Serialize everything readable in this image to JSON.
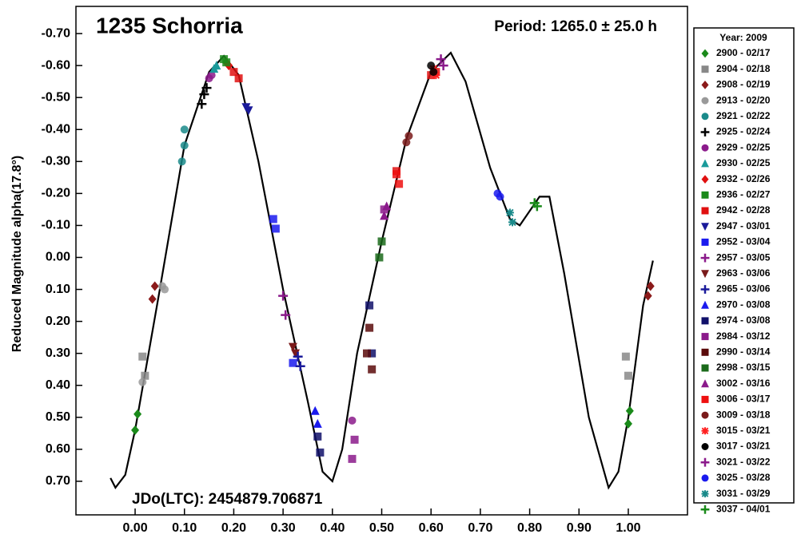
{
  "chart_data": {
    "type": "scatter",
    "title": "1235 Schorria",
    "subtitle": "Period: 1265.0 ± 25.0 h",
    "annotation": "JDo(LTC): 2454879.706871",
    "y_label": "Reduced Magnitude alpha(17.8°)",
    "legend_title": "Year: 2009",
    "legend_position": "right",
    "xlim": [
      -0.12,
      1.12
    ],
    "ylim": [
      0.805,
      -0.785
    ],
    "xticks": [
      {
        "value": 0,
        "label": "0.00"
      },
      {
        "value": 0.1,
        "label": "0.10"
      },
      {
        "value": 0.2,
        "label": "0.20"
      },
      {
        "value": 0.3,
        "label": "0.30"
      },
      {
        "value": 0.4,
        "label": "0.40"
      },
      {
        "value": 0.5,
        "label": "0.50"
      },
      {
        "value": 0.6,
        "label": "0.60"
      },
      {
        "value": 0.7,
        "label": "0.70"
      },
      {
        "value": 0.8,
        "label": "0.80"
      },
      {
        "value": 0.9,
        "label": "0.90"
      },
      {
        "value": 1,
        "label": "1.00"
      }
    ],
    "yticks": [
      {
        "value": -0.7,
        "label": "-0.70"
      },
      {
        "value": -0.6,
        "label": "-0.60"
      },
      {
        "value": -0.5,
        "label": "-0.50"
      },
      {
        "value": -0.4,
        "label": "-0.40"
      },
      {
        "value": -0.3,
        "label": "-0.30"
      },
      {
        "value": -0.2,
        "label": "-0.20"
      },
      {
        "value": -0.1,
        "label": "-0.10"
      },
      {
        "value": 0,
        "label": "0.00"
      },
      {
        "value": 0.1,
        "label": "0.10"
      },
      {
        "value": 0.2,
        "label": "0.20"
      },
      {
        "value": 0.3,
        "label": "0.30"
      },
      {
        "value": 0.4,
        "label": "0.40"
      },
      {
        "value": 0.5,
        "label": "0.50"
      },
      {
        "value": 0.6,
        "label": "0.60"
      },
      {
        "value": 0.7,
        "label": "0.70"
      }
    ],
    "fit": {
      "color": "#000000",
      "x": [
        -0.05,
        -0.04,
        -0.02,
        0.0,
        0.05,
        0.1,
        0.15,
        0.18,
        0.21,
        0.25,
        0.3,
        0.35,
        0.38,
        0.4,
        0.42,
        0.45,
        0.5,
        0.55,
        0.6,
        0.64,
        0.67,
        0.72,
        0.76,
        0.78,
        0.82,
        0.84,
        0.87,
        0.92,
        0.96,
        0.98,
        1.0,
        1.03,
        1.05
      ],
      "y": [
        0.69,
        0.72,
        0.68,
        0.54,
        0.1,
        -0.35,
        -0.58,
        -0.63,
        -0.57,
        -0.3,
        0.1,
        0.45,
        0.67,
        0.7,
        0.6,
        0.3,
        -0.05,
        -0.37,
        -0.58,
        -0.64,
        -0.55,
        -0.28,
        -0.12,
        -0.1,
        -0.19,
        -0.19,
        0.05,
        0.5,
        0.72,
        0.67,
        0.5,
        0.15,
        0.01
      ]
    },
    "series": [
      {
        "name": "2900 - 02/17",
        "color": "#1a8a1a",
        "marker": "diamond",
        "x": [
          0.0,
          0.005,
          1.0,
          1.003
        ],
        "values": [
          0.54,
          0.49,
          0.52,
          0.48
        ]
      },
      {
        "name": "2904 - 02/18",
        "color": "#888888",
        "marker": "square",
        "x": [
          0.015,
          0.02,
          0.995,
          1.0
        ],
        "values": [
          0.31,
          0.37,
          0.31,
          0.37
        ]
      },
      {
        "name": "2908 - 02/19",
        "color": "#8b1a1a",
        "marker": "diamond",
        "x": [
          0.035,
          0.04,
          1.04,
          1.045
        ],
        "values": [
          0.13,
          0.09,
          0.12,
          0.09
        ]
      },
      {
        "name": "2913 - 02/20",
        "color": "#999999",
        "marker": "circle",
        "x": [
          0.015,
          0.055,
          0.06
        ],
        "values": [
          0.39,
          0.09,
          0.1
        ]
      },
      {
        "name": "2921 - 02/22",
        "color": "#1a8a8a",
        "marker": "circle",
        "x": [
          0.095,
          0.1,
          0.1
        ],
        "values": [
          -0.3,
          -0.35,
          -0.4
        ]
      },
      {
        "name": "2925 - 02/24",
        "color": "#000000",
        "marker": "plus",
        "x": [
          0.135,
          0.14,
          0.145
        ],
        "values": [
          -0.48,
          -0.51,
          -0.53
        ]
      },
      {
        "name": "2929 - 02/25",
        "color": "#8b1a8b",
        "marker": "circle",
        "x": [
          0.15,
          0.155,
          0.44
        ],
        "values": [
          -0.56,
          -0.57,
          0.51
        ]
      },
      {
        "name": "2930 - 02/25",
        "color": "#1a9a9a",
        "marker": "triangle",
        "x": [
          0.16,
          0.165
        ],
        "values": [
          -0.59,
          -0.6
        ]
      },
      {
        "name": "2932 - 02/26",
        "color": "#e01010",
        "marker": "diamond",
        "x": [
          0.185,
          0.19
        ],
        "values": [
          -0.61,
          -0.6
        ]
      },
      {
        "name": "2936 - 02/27",
        "color": "#1a8a1a",
        "marker": "square",
        "x": [
          0.18,
          0.185
        ],
        "values": [
          -0.62,
          -0.61
        ]
      },
      {
        "name": "2942 - 02/28",
        "color": "#e01010",
        "marker": "square",
        "x": [
          0.2,
          0.21,
          0.53,
          0.6,
          0.61
        ],
        "values": [
          -0.58,
          -0.56,
          -0.27,
          -0.57,
          -0.58
        ]
      },
      {
        "name": "2947 - 03/01",
        "color": "#1a1a9a",
        "marker": "triangle-down",
        "x": [
          0.225,
          0.23
        ],
        "values": [
          -0.47,
          -0.46
        ]
      },
      {
        "name": "2952 - 03/04",
        "color": "#1a1aee",
        "marker": "square",
        "x": [
          0.28,
          0.285,
          0.32
        ],
        "values": [
          -0.12,
          -0.09,
          0.33
        ]
      },
      {
        "name": "2957 - 03/05",
        "color": "#8b1a8b",
        "marker": "plus",
        "x": [
          0.3,
          0.305
        ],
        "values": [
          0.12,
          0.18
        ]
      },
      {
        "name": "2963 - 03/06",
        "color": "#7a1a1a",
        "marker": "triangle-down",
        "x": [
          0.32,
          0.325
        ],
        "values": [
          0.28,
          0.3
        ]
      },
      {
        "name": "2965 - 03/06",
        "color": "#1a1a9a",
        "marker": "plus",
        "x": [
          0.33,
          0.335
        ],
        "values": [
          0.31,
          0.34
        ]
      },
      {
        "name": "2970 - 03/08",
        "color": "#1a1aee",
        "marker": "triangle",
        "x": [
          0.365,
          0.37
        ],
        "values": [
          0.48,
          0.52
        ]
      },
      {
        "name": "2974 - 03/08",
        "color": "#10106a",
        "marker": "square",
        "x": [
          0.37,
          0.375,
          0.475,
          0.48
        ],
        "values": [
          0.56,
          0.61,
          0.15,
          0.3
        ]
      },
      {
        "name": "2984 - 03/12",
        "color": "#8b1a8b",
        "marker": "square",
        "x": [
          0.44,
          0.445,
          0.505
        ],
        "values": [
          0.63,
          0.57,
          -0.15
        ]
      },
      {
        "name": "2990 - 03/14",
        "color": "#5a0a0a",
        "marker": "square",
        "x": [
          0.47,
          0.475,
          0.48
        ],
        "values": [
          0.3,
          0.22,
          0.35
        ]
      },
      {
        "name": "2998 - 03/15",
        "color": "#1a6a1a",
        "marker": "square",
        "x": [
          0.495,
          0.5
        ],
        "values": [
          0.0,
          -0.05
        ]
      },
      {
        "name": "3002 - 03/16",
        "color": "#8b1a8b",
        "marker": "triangle",
        "x": [
          0.505,
          0.51
        ],
        "values": [
          -0.13,
          -0.16
        ]
      },
      {
        "name": "3006 - 03/17",
        "color": "#ee1010",
        "marker": "square",
        "x": [
          0.53,
          0.535
        ],
        "values": [
          -0.26,
          -0.23
        ]
      },
      {
        "name": "3009 - 03/18",
        "color": "#7a1a1a",
        "marker": "circle",
        "x": [
          0.55,
          0.555
        ],
        "values": [
          -0.36,
          -0.38
        ]
      },
      {
        "name": "3015 - 03/21",
        "color": "#ff2020",
        "marker": "asterisk",
        "x": [
          0.605,
          0.61
        ],
        "values": [
          -0.59,
          -0.57
        ]
      },
      {
        "name": "3017 - 03/21",
        "color": "#000000",
        "marker": "circle",
        "x": [
          0.6,
          0.605
        ],
        "values": [
          -0.6,
          -0.58
        ]
      },
      {
        "name": "3021 - 03/22",
        "color": "#8b1a8b",
        "marker": "plus",
        "x": [
          0.62,
          0.625
        ],
        "values": [
          -0.62,
          -0.6
        ]
      },
      {
        "name": "3025 - 03/28",
        "color": "#1a1aee",
        "marker": "circle",
        "x": [
          0.735,
          0.74
        ],
        "values": [
          -0.2,
          -0.19
        ]
      },
      {
        "name": "3031 - 03/29",
        "color": "#1a8a8a",
        "marker": "asterisk",
        "x": [
          0.76,
          0.765
        ],
        "values": [
          -0.14,
          -0.11
        ]
      },
      {
        "name": "3037 - 04/01",
        "color": "#1a8a1a",
        "marker": "plus",
        "x": [
          0.81,
          0.815
        ],
        "values": [
          -0.17,
          -0.16
        ]
      }
    ]
  }
}
